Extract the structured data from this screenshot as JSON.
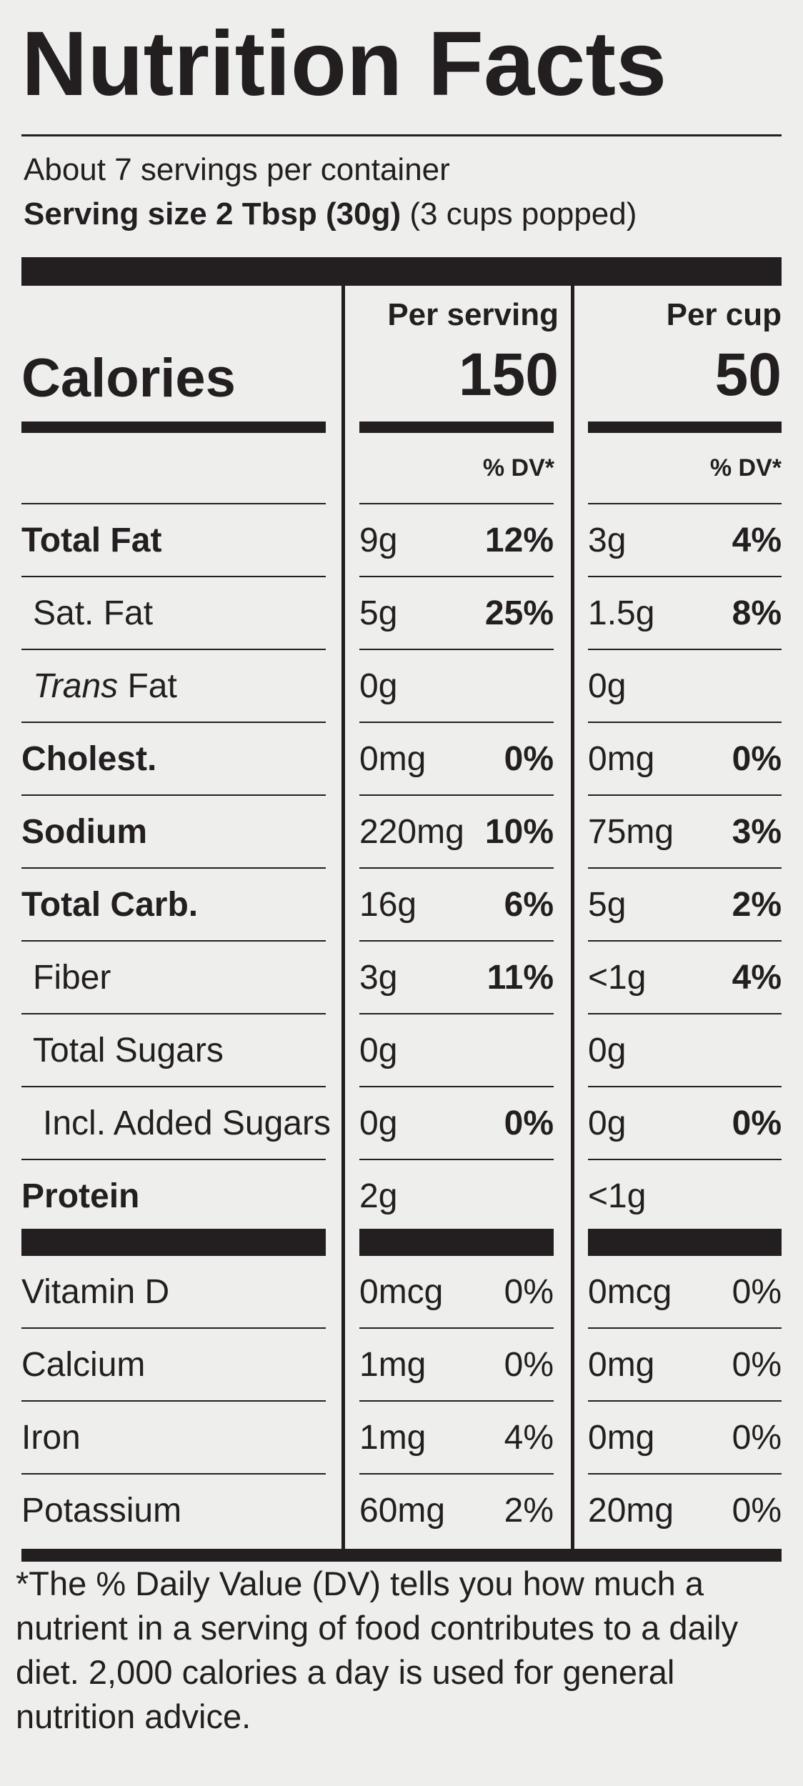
{
  "title": "Nutrition Facts",
  "servings_per_container": "About 7 servings per container",
  "serving_size_label": "Serving size 2 Tbsp (30g)",
  "serving_size_extra": "(3 cups popped)",
  "columns": {
    "per_serving": "Per serving",
    "per_cup": "Per cup"
  },
  "calories": {
    "label": "Calories",
    "per_serving": "150",
    "per_cup": "50"
  },
  "dv_header": "% DV*",
  "nutrients": [
    {
      "name": "Total Fat",
      "bold": true,
      "italic_prefix": "",
      "indent": 0,
      "s_amt": "9g",
      "s_dv": "12%",
      "c_amt": "3g",
      "c_dv": "4%"
    },
    {
      "name": "Sat. Fat",
      "bold": false,
      "italic_prefix": "",
      "indent": 1,
      "s_amt": "5g",
      "s_dv": "25%",
      "c_amt": "1.5g",
      "c_dv": "8%"
    },
    {
      "name": "Fat",
      "bold": false,
      "italic_prefix": "Trans",
      "indent": 1,
      "s_amt": "0g",
      "s_dv": "",
      "c_amt": "0g",
      "c_dv": ""
    },
    {
      "name": "Cholest.",
      "bold": true,
      "italic_prefix": "",
      "indent": 0,
      "s_amt": "0mg",
      "s_dv": "0%",
      "c_amt": "0mg",
      "c_dv": "0%"
    },
    {
      "name": "Sodium",
      "bold": true,
      "italic_prefix": "",
      "indent": 0,
      "s_amt": "220mg",
      "s_dv": "10%",
      "c_amt": "75mg",
      "c_dv": "3%"
    },
    {
      "name": "Total Carb.",
      "bold": true,
      "italic_prefix": "",
      "indent": 0,
      "s_amt": "16g",
      "s_dv": "6%",
      "c_amt": "5g",
      "c_dv": "2%"
    },
    {
      "name": "Fiber",
      "bold": false,
      "italic_prefix": "",
      "indent": 1,
      "s_amt": "3g",
      "s_dv": "11%",
      "c_amt": "<1g",
      "c_dv": "4%"
    },
    {
      "name": "Total Sugars",
      "bold": false,
      "italic_prefix": "",
      "indent": 1,
      "s_amt": "0g",
      "s_dv": "",
      "c_amt": "0g",
      "c_dv": ""
    },
    {
      "name": "Incl. Added Sugars",
      "bold": false,
      "italic_prefix": "",
      "indent": 2,
      "s_amt": "0g",
      "s_dv": "0%",
      "c_amt": "0g",
      "c_dv": "0%"
    },
    {
      "name": "Protein",
      "bold": true,
      "italic_prefix": "",
      "indent": 0,
      "s_amt": "2g",
      "s_dv": "",
      "c_amt": "<1g",
      "c_dv": ""
    }
  ],
  "vitamins": [
    {
      "name": "Vitamin D",
      "s_amt": "0mcg",
      "s_dv": "0%",
      "c_amt": "0mcg",
      "c_dv": "0%"
    },
    {
      "name": "Calcium",
      "s_amt": "1mg",
      "s_dv": "0%",
      "c_amt": "0mg",
      "c_dv": "0%"
    },
    {
      "name": "Iron",
      "s_amt": "1mg",
      "s_dv": "4%",
      "c_amt": "0mg",
      "c_dv": "0%"
    },
    {
      "name": "Potassium",
      "s_amt": "60mg",
      "s_dv": "2%",
      "c_amt": "20mg",
      "c_dv": "0%"
    }
  ],
  "footnote": "*The % Daily Value (DV) tells you how much a nutrient in a serving of food contributes to a daily diet. 2,000 calories a day is used for general nutrition advice."
}
